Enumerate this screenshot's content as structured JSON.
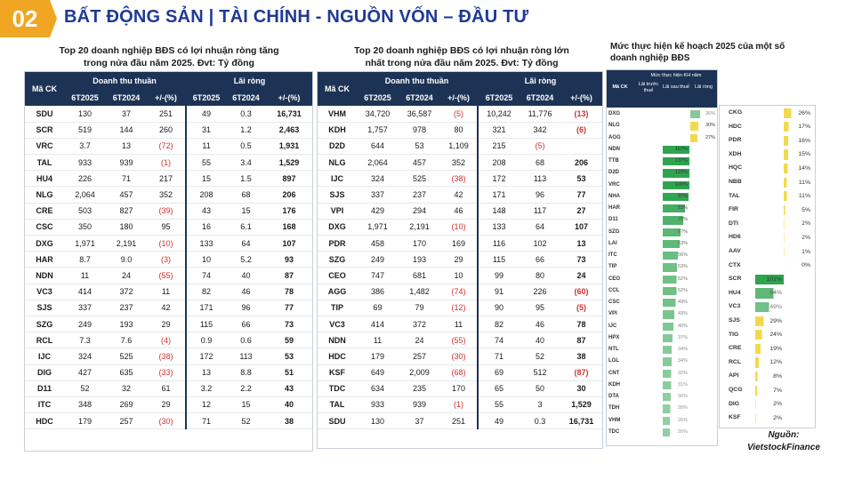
{
  "header": {
    "number": "02",
    "title": "BẤT ĐỘNG SẢN | TÀI CHÍNH - NGUỒN VỐN – ĐẦU TƯ"
  },
  "colors": {
    "navy": "#1d3355",
    "title_blue": "#1f3a93",
    "badge_orange": "#f0a623",
    "negative_red": "#d0312d",
    "green": "#2ea44f",
    "yellow": "#f2d94e"
  },
  "table1": {
    "title_line1": "Top 20 doanh nghiệp BĐS có lợi nhuận ròng tăng",
    "title_line2": "trong nửa đầu năm 2025. Đvt: Tỷ đồng",
    "headers": {
      "code": "Mã CK",
      "revenue": "Doanh thu thuần",
      "profit": "Lãi ròng",
      "c1": "6T2025",
      "c2": "6T2024",
      "c3": "+/-(%)",
      "c4": "6T2025",
      "c5": "6T2024",
      "c6": "+/-(%)"
    },
    "rows": [
      [
        "SDU",
        "130",
        "37",
        "251",
        "49",
        "0.3",
        "16,731"
      ],
      [
        "SCR",
        "519",
        "144",
        "260",
        "31",
        "1.2",
        "2,463"
      ],
      [
        "VRC",
        "3.7",
        "13",
        "(72)",
        "11",
        "0.5",
        "1,931"
      ],
      [
        "TAL",
        "933",
        "939",
        "(1)",
        "55",
        "3.4",
        "1,529"
      ],
      [
        "HU4",
        "226",
        "71",
        "217",
        "15",
        "1.5",
        "897"
      ],
      [
        "NLG",
        "2,064",
        "457",
        "352",
        "208",
        "68",
        "206"
      ],
      [
        "CRE",
        "503",
        "827",
        "(39)",
        "43",
        "15",
        "176"
      ],
      [
        "CSC",
        "350",
        "180",
        "95",
        "16",
        "6.1",
        "168"
      ],
      [
        "DXG",
        "1,971",
        "2,191",
        "(10)",
        "133",
        "64",
        "107"
      ],
      [
        "HAR",
        "8.7",
        "9.0",
        "(3)",
        "10",
        "5.2",
        "93"
      ],
      [
        "NDN",
        "11",
        "24",
        "(55)",
        "74",
        "40",
        "87"
      ],
      [
        "VC3",
        "414",
        "372",
        "11",
        "82",
        "46",
        "78"
      ],
      [
        "SJS",
        "337",
        "237",
        "42",
        "171",
        "96",
        "77"
      ],
      [
        "SZG",
        "249",
        "193",
        "29",
        "115",
        "66",
        "73"
      ],
      [
        "RCL",
        "7.3",
        "7.6",
        "(4)",
        "0.9",
        "0.6",
        "59"
      ],
      [
        "IJC",
        "324",
        "525",
        "(38)",
        "172",
        "113",
        "53"
      ],
      [
        "DIG",
        "427",
        "635",
        "(33)",
        "13",
        "8.8",
        "51"
      ],
      [
        "D11",
        "52",
        "32",
        "61",
        "3.2",
        "2.2",
        "43"
      ],
      [
        "ITC",
        "348",
        "269",
        "29",
        "12",
        "15",
        "40"
      ],
      [
        "HDC",
        "179",
        "257",
        "(30)",
        "71",
        "52",
        "38"
      ]
    ]
  },
  "table2": {
    "title_line1": "Top 20 doanh nghiệp BĐS có lợi nhuận ròng lớn",
    "title_line2": "nhất trong nửa đầu năm 2025. Đvt: Tỷ đồng",
    "headers": {
      "code": "Mã CK",
      "revenue": "Doanh thu thuần",
      "profit": "Lãi ròng",
      "c1": "6T2025",
      "c2": "6T2024",
      "c3": "+/-(%)",
      "c4": "6T2025",
      "c5": "6T2024",
      "c6": "+/-(%)"
    },
    "rows": [
      [
        "VHM",
        "34,720",
        "36,587",
        "(5)",
        "10,242",
        "11,776",
        "(13)"
      ],
      [
        "KDH",
        "1,757",
        "978",
        "80",
        "321",
        "342",
        "(6)"
      ],
      [
        "D2D",
        "644",
        "53",
        "1,109",
        "215",
        "(5)",
        ""
      ],
      [
        "NLG",
        "2,064",
        "457",
        "352",
        "208",
        "68",
        "206"
      ],
      [
        "IJC",
        "324",
        "525",
        "(38)",
        "172",
        "113",
        "53"
      ],
      [
        "SJS",
        "337",
        "237",
        "42",
        "171",
        "96",
        "77"
      ],
      [
        "VPI",
        "429",
        "294",
        "46",
        "148",
        "117",
        "27"
      ],
      [
        "DXG",
        "1,971",
        "2,191",
        "(10)",
        "133",
        "64",
        "107"
      ],
      [
        "PDR",
        "458",
        "170",
        "169",
        "116",
        "102",
        "13"
      ],
      [
        "SZG",
        "249",
        "193",
        "29",
        "115",
        "66",
        "73"
      ],
      [
        "CEO",
        "747",
        "681",
        "10",
        "99",
        "80",
        "24"
      ],
      [
        "AGG",
        "386",
        "1,482",
        "(74)",
        "91",
        "226",
        "(60)"
      ],
      [
        "TIP",
        "69",
        "79",
        "(12)",
        "90",
        "95",
        "(5)"
      ],
      [
        "VC3",
        "414",
        "372",
        "11",
        "82",
        "46",
        "78"
      ],
      [
        "NDN",
        "11",
        "24",
        "(55)",
        "74",
        "40",
        "87"
      ],
      [
        "HDC",
        "179",
        "257",
        "(30)",
        "71",
        "52",
        "38"
      ],
      [
        "KSF",
        "649",
        "2,009",
        "(68)",
        "69",
        "512",
        "(87)"
      ],
      [
        "TDC",
        "634",
        "235",
        "170",
        "65",
        "50",
        "30"
      ],
      [
        "TAL",
        "933",
        "939",
        "(1)",
        "55",
        "3",
        "1,529"
      ],
      [
        "SDU",
        "130",
        "37",
        "251",
        "49",
        "0.3",
        "16,731"
      ]
    ]
  },
  "right": {
    "title_line1": "Mức thực hiện kế hoạch 2025 của một số",
    "title_line2": "doanh nghiệp BĐS",
    "mini_header": {
      "code": "Mã CK",
      "group": "Mức thực hiện KH năm",
      "c1": "Lãi trước thuế",
      "c2": "Lãi sau thuế",
      "c3": "Lãi ròng"
    },
    "left_rows": [
      {
        "code": "DXG",
        "col": 3,
        "value": "36%",
        "level": 0.36,
        "color": "green"
      },
      {
        "code": "NLG",
        "col": 3,
        "value": "30%",
        "level": 0.3,
        "color": "yellow"
      },
      {
        "code": "AGG",
        "col": 3,
        "value": "27%",
        "level": 0.27,
        "color": "yellow"
      },
      {
        "code": "NDN",
        "col": 2,
        "value": "167%",
        "level": 1.0,
        "color": "green"
      },
      {
        "code": "TTB",
        "col": 2,
        "value": "137%",
        "level": 1.0,
        "color": "green"
      },
      {
        "code": "D2D",
        "col": 2,
        "value": "122%",
        "level": 1.0,
        "color": "green"
      },
      {
        "code": "VRC",
        "col": 2,
        "value": "100%",
        "level": 1.0,
        "color": "green"
      },
      {
        "code": "NHA",
        "col": 2,
        "value": "97%",
        "level": 0.97,
        "color": "green"
      },
      {
        "code": "HAR",
        "col": 2,
        "value": "83%",
        "level": 0.83,
        "color": "green"
      },
      {
        "code": "D11",
        "col": 2,
        "value": "76%",
        "level": 0.76,
        "color": "green"
      },
      {
        "code": "SZG",
        "col": 2,
        "value": "67%",
        "level": 0.67,
        "color": "green"
      },
      {
        "code": "LAI",
        "col": 2,
        "value": "63%",
        "level": 0.63,
        "color": "green"
      },
      {
        "code": "ITC",
        "col": 2,
        "value": "56%",
        "level": 0.56,
        "color": "green"
      },
      {
        "code": "TIP",
        "col": 2,
        "value": "53%",
        "level": 0.53,
        "color": "green"
      },
      {
        "code": "CEO",
        "col": 2,
        "value": "52%",
        "level": 0.52,
        "color": "green"
      },
      {
        "code": "CCL",
        "col": 2,
        "value": "52%",
        "level": 0.52,
        "color": "green"
      },
      {
        "code": "CSC",
        "col": 2,
        "value": "49%",
        "level": 0.49,
        "color": "green"
      },
      {
        "code": "VPI",
        "col": 2,
        "value": "43%",
        "level": 0.43,
        "color": "green"
      },
      {
        "code": "IJC",
        "col": 2,
        "value": "40%",
        "level": 0.4,
        "color": "green"
      },
      {
        "code": "HPX",
        "col": 2,
        "value": "37%",
        "level": 0.37,
        "color": "green"
      },
      {
        "code": "NTL",
        "col": 2,
        "value": "34%",
        "level": 0.34,
        "color": "green"
      },
      {
        "code": "LGL",
        "col": 2,
        "value": "34%",
        "level": 0.34,
        "color": "green"
      },
      {
        "code": "CNT",
        "col": 2,
        "value": "32%",
        "level": 0.32,
        "color": "green"
      },
      {
        "code": "KDH",
        "col": 2,
        "value": "31%",
        "level": 0.31,
        "color": "green"
      },
      {
        "code": "DTA",
        "col": 2,
        "value": "30%",
        "level": 0.3,
        "color": "green"
      },
      {
        "code": "TDH",
        "col": 2,
        "value": "28%",
        "level": 0.28,
        "color": "green"
      },
      {
        "code": "VHM",
        "col": 2,
        "value": "26%",
        "level": 0.26,
        "color": "green"
      },
      {
        "code": "TDC",
        "col": 2,
        "value": "26%",
        "level": 0.26,
        "color": "green"
      }
    ],
    "right_rows": [
      {
        "code": "CKG",
        "col": 2,
        "value": "26%",
        "level": 0.26,
        "color": "yellow"
      },
      {
        "code": "HDC",
        "col": 2,
        "value": "17%",
        "level": 0.17,
        "color": "yellow"
      },
      {
        "code": "PDR",
        "col": 2,
        "value": "16%",
        "level": 0.16,
        "color": "yellow"
      },
      {
        "code": "XDH",
        "col": 2,
        "value": "15%",
        "level": 0.15,
        "color": "yellow"
      },
      {
        "code": "HQC",
        "col": 2,
        "value": "14%",
        "level": 0.14,
        "color": "yellow"
      },
      {
        "code": "NBB",
        "col": 2,
        "value": "11%",
        "level": 0.11,
        "color": "yellow"
      },
      {
        "code": "TAL",
        "col": 2,
        "value": "11%",
        "level": 0.11,
        "color": "yellow"
      },
      {
        "code": "FIR",
        "col": 2,
        "value": "5%",
        "level": 0.05,
        "color": "yellow"
      },
      {
        "code": "DTI",
        "col": 2,
        "value": "2%",
        "level": 0.02,
        "color": "yellow"
      },
      {
        "code": "HD6",
        "col": 2,
        "value": "2%",
        "level": 0.02,
        "color": "yellow"
      },
      {
        "code": "AAV",
        "col": 2,
        "value": "1%",
        "level": 0.01,
        "color": "yellow"
      },
      {
        "code": "CTX",
        "col": 2,
        "value": "0%",
        "level": 0.0,
        "color": "yellow"
      },
      {
        "code": "SCR",
        "col": 1,
        "value": "101%",
        "level": 1.0,
        "color": "green"
      },
      {
        "code": "HU4",
        "col": 1,
        "value": "64%",
        "level": 0.64,
        "color": "green"
      },
      {
        "code": "VC3",
        "col": 1,
        "value": "49%",
        "level": 0.49,
        "color": "green"
      },
      {
        "code": "SJS",
        "col": 1,
        "value": "29%",
        "level": 0.29,
        "color": "yellow"
      },
      {
        "code": "TIG",
        "col": 1,
        "value": "24%",
        "level": 0.24,
        "color": "yellow"
      },
      {
        "code": "CRE",
        "col": 1,
        "value": "19%",
        "level": 0.19,
        "color": "yellow"
      },
      {
        "code": "RCL",
        "col": 1,
        "value": "12%",
        "level": 0.12,
        "color": "yellow"
      },
      {
        "code": "API",
        "col": 1,
        "value": "8%",
        "level": 0.08,
        "color": "yellow"
      },
      {
        "code": "QCG",
        "col": 1,
        "value": "7%",
        "level": 0.07,
        "color": "yellow"
      },
      {
        "code": "DIG",
        "col": 1,
        "value": "2%",
        "level": 0.02,
        "color": "yellow"
      },
      {
        "code": "KSF",
        "col": 1,
        "value": "2%",
        "level": 0.02,
        "color": "yellow"
      }
    ]
  },
  "source": {
    "line1": "Nguồn:",
    "line2": "VietstockFinance"
  }
}
